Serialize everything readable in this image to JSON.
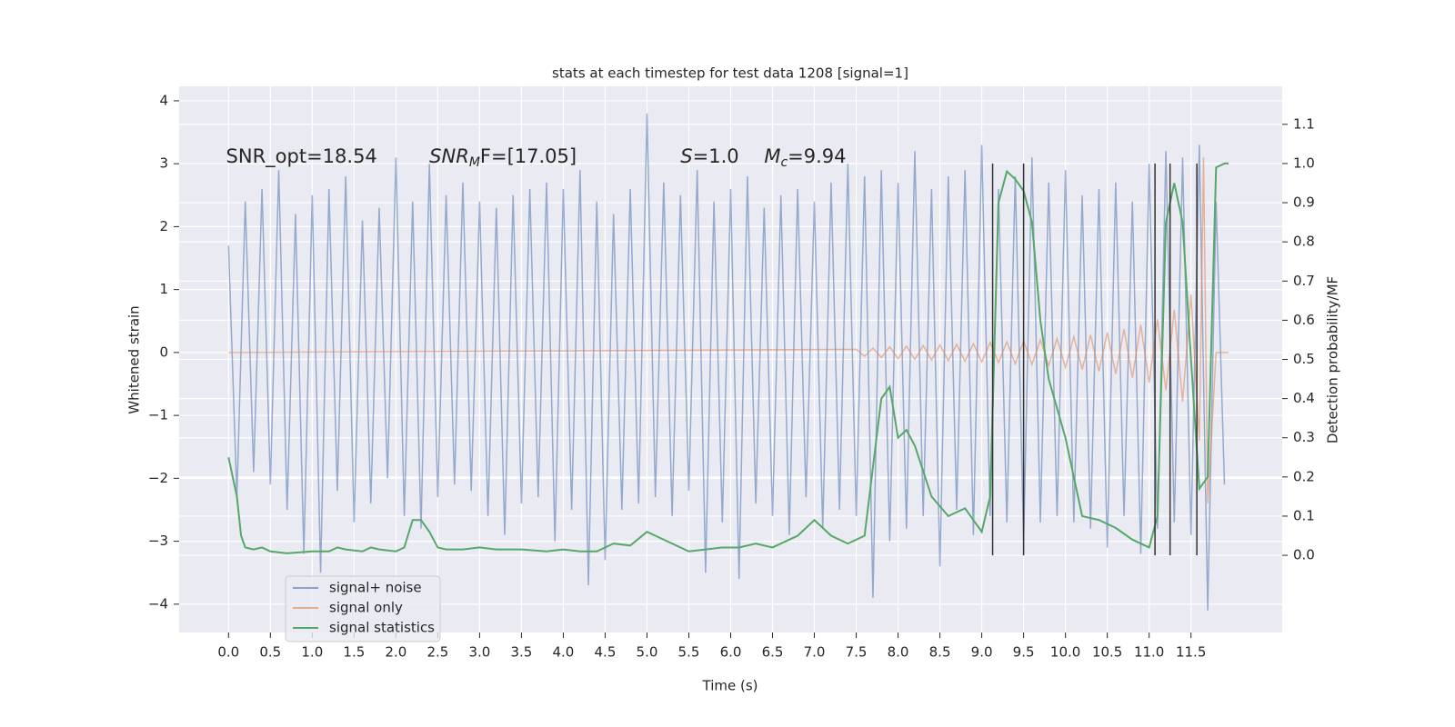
{
  "chart_data": {
    "type": "line",
    "title": "stats at each timestep for test data 1208 [signal=1]",
    "xlabel": "Time (s)",
    "ylabel": "Whitened strain",
    "y2label": "Detection probability/MF",
    "xlim": [
      -0.59,
      12.59
    ],
    "ylim": [
      -4.45,
      4.23
    ],
    "y2lim": [
      -0.197,
      1.197
    ],
    "xticks": [
      {
        "value": 0,
        "label": "0.0"
      },
      0.5,
      {
        "value": 1,
        "label": "1.0"
      },
      1.5,
      {
        "value": 2,
        "label": "2.0"
      },
      2.5,
      {
        "value": 3,
        "label": "3.0"
      },
      3.5,
      {
        "value": 4,
        "label": "4.0"
      },
      4.5,
      {
        "value": 5,
        "label": "5.0"
      },
      5.5,
      {
        "value": 6,
        "label": "6.0"
      },
      6.5,
      {
        "value": 7,
        "label": "7.0"
      },
      7.5,
      {
        "value": 8,
        "label": "8.0"
      },
      8.5,
      {
        "value": 9,
        "label": "9.0"
      },
      9.5,
      {
        "value": 10,
        "label": "10.0"
      },
      10.5,
      {
        "value": 11,
        "label": "11.0"
      },
      11.5
    ],
    "yticks": [
      {
        "value": -4,
        "label": "−4"
      },
      {
        "value": -3,
        "label": "−3"
      },
      {
        "value": -2,
        "label": "−2"
      },
      {
        "value": -1,
        "label": "−1"
      },
      0,
      1,
      2,
      3,
      4
    ],
    "y2ticks": [
      {
        "value": 0,
        "label": "0.0"
      },
      0.1,
      0.2,
      0.3,
      0.4,
      0.5,
      0.6,
      0.7,
      0.8,
      0.9,
      {
        "value": 1,
        "label": "1.0"
      },
      1.1
    ],
    "grid": true,
    "legend": "lower left",
    "annotations": [
      {
        "text": "SNR_opt=18.54",
        "x": -0.03,
        "y": 3.1
      },
      {
        "text": "SNR",
        "sub": "M",
        "rest": "F=[17.05]",
        "x": 2.4,
        "y": 3.1
      },
      {
        "text": "S",
        "rest": "=1.0",
        "x": 5.4,
        "y": 3.1
      },
      {
        "text": "M",
        "sub": "c",
        "rest": "=9.94",
        "x": 6.4,
        "y": 3.1
      }
    ],
    "vlines": {
      "x": [
        9.13,
        9.5,
        11.07,
        11.25,
        11.57
      ],
      "y2span": [
        0,
        1
      ],
      "color": "#333333"
    },
    "series": [
      {
        "name": "signal+ noise",
        "color": "#4c72b0",
        "x": [
          0,
          0.1,
          0.2,
          0.3,
          0.4,
          0.5,
          0.6,
          0.7,
          0.8,
          0.9,
          1,
          1.1,
          1.2,
          1.3,
          1.4,
          1.5,
          1.6,
          1.7,
          1.8,
          1.9,
          2,
          2.1,
          2.2,
          2.3,
          2.4,
          2.5,
          2.6,
          2.7,
          2.8,
          2.9,
          3,
          3.1,
          3.2,
          3.3,
          3.4,
          3.5,
          3.6,
          3.7,
          3.8,
          3.9,
          4,
          4.1,
          4.2,
          4.3,
          4.4,
          4.5,
          4.6,
          4.7,
          4.8,
          4.9,
          5,
          5.1,
          5.2,
          5.3,
          5.4,
          5.5,
          5.6,
          5.7,
          5.8,
          5.9,
          6,
          6.1,
          6.2,
          6.3,
          6.4,
          6.5,
          6.6,
          6.7,
          6.8,
          6.9,
          7,
          7.1,
          7.2,
          7.3,
          7.4,
          7.5,
          7.6,
          7.7,
          7.8,
          7.9,
          8,
          8.1,
          8.2,
          8.3,
          8.4,
          8.5,
          8.6,
          8.7,
          8.8,
          8.9,
          9,
          9.1,
          9.2,
          9.3,
          9.4,
          9.5,
          9.6,
          9.7,
          9.8,
          9.9,
          10,
          10.1,
          10.2,
          10.3,
          10.4,
          10.5,
          10.6,
          10.7,
          10.8,
          10.9,
          11,
          11.1,
          11.2,
          11.3,
          11.4,
          11.5,
          11.6,
          11.7,
          11.8,
          11.9
        ],
        "values": [
          1.7,
          -2.3,
          2.4,
          -1.9,
          2.6,
          -2.1,
          2.9,
          -2.5,
          2.2,
          -3.2,
          2.5,
          -3.5,
          2.6,
          -2.2,
          2.8,
          -2.7,
          2.1,
          -2.4,
          2.3,
          -2.0,
          3.1,
          -2.6,
          2.4,
          -2.8,
          3.0,
          -2.3,
          2.5,
          -2.1,
          2.7,
          -2.2,
          2.4,
          -2.6,
          2.3,
          -2.9,
          2.5,
          -2.4,
          2.6,
          -2.3,
          2.7,
          -3.0,
          2.6,
          -2.5,
          2.9,
          -3.7,
          2.4,
          -3.3,
          2.2,
          -2.5,
          2.6,
          -2.4,
          3.8,
          -2.3,
          2.7,
          -2.6,
          2.5,
          -2.2,
          2.9,
          -3.5,
          2.4,
          -2.7,
          2.6,
          -3.6,
          2.8,
          -2.4,
          2.3,
          -2.6,
          2.5,
          -2.9,
          2.6,
          -2.3,
          2.4,
          -2.8,
          2.7,
          -2.5,
          3.0,
          -2.6,
          2.8,
          -3.9,
          2.9,
          -3.0,
          2.7,
          -2.8,
          3.2,
          -2.6,
          2.6,
          -3.4,
          2.8,
          -2.5,
          2.9,
          -2.9,
          3.3,
          -2.6,
          2.6,
          -2.7,
          2.8,
          -3.0,
          3.1,
          -2.7,
          2.7,
          -2.6,
          2.9,
          -2.7,
          2.5,
          -2.8,
          2.6,
          -3.1,
          2.7,
          -2.6,
          2.4,
          -3.2,
          3.0,
          -2.8,
          3.2,
          -2.7,
          3.1,
          -2.9,
          3.3,
          -4.1,
          2.4,
          -2.1
        ]
      },
      {
        "name": "signal only",
        "color": "#dd8452",
        "x": [
          0,
          7.5,
          7.6,
          7.7,
          7.8,
          7.9,
          8,
          8.1,
          8.2,
          8.3,
          8.4,
          8.5,
          8.6,
          8.7,
          8.8,
          8.9,
          9,
          9.1,
          9.2,
          9.3,
          9.4,
          9.5,
          9.6,
          9.7,
          9.8,
          9.9,
          10,
          10.1,
          10.2,
          10.3,
          10.4,
          10.5,
          10.6,
          10.7,
          10.8,
          10.9,
          11,
          11.1,
          11.2,
          11.3,
          11.4,
          11.5,
          11.6,
          11.65,
          11.7,
          11.8,
          11.95
        ],
        "values": [
          0,
          0.05,
          -0.06,
          0.07,
          -0.08,
          0.09,
          -0.1,
          0.1,
          -0.11,
          0.11,
          -0.12,
          0.12,
          -0.13,
          0.13,
          -0.14,
          0.14,
          -0.15,
          0.16,
          -0.16,
          0.17,
          -0.18,
          0.18,
          -0.19,
          0.2,
          -0.21,
          0.22,
          -0.24,
          0.25,
          -0.27,
          0.28,
          -0.3,
          0.32,
          -0.34,
          0.37,
          -0.4,
          0.44,
          -0.48,
          0.53,
          -0.6,
          0.68,
          -0.78,
          0.92,
          -1.4,
          3.1,
          -2.4,
          0,
          0
        ]
      },
      {
        "name": "signal statistics",
        "color": "#55a868",
        "axis": "y2",
        "x": [
          0,
          0.1,
          0.15,
          0.2,
          0.3,
          0.4,
          0.5,
          0.7,
          1,
          1.2,
          1.3,
          1.4,
          1.6,
          1.7,
          1.8,
          2,
          2.1,
          2.2,
          2.3,
          2.4,
          2.5,
          2.6,
          2.8,
          3,
          3.2,
          3.5,
          3.8,
          4,
          4.2,
          4.4,
          4.6,
          4.8,
          5,
          5.1,
          5.3,
          5.5,
          5.7,
          5.9,
          6.1,
          6.3,
          6.5,
          6.8,
          7,
          7.2,
          7.4,
          7.6,
          7.8,
          7.9,
          8,
          8.1,
          8.2,
          8.4,
          8.6,
          8.8,
          9,
          9.1,
          9.2,
          9.3,
          9.4,
          9.5,
          9.6,
          9.7,
          9.8,
          10,
          10.2,
          10.4,
          10.6,
          10.8,
          11,
          11.1,
          11.2,
          11.3,
          11.4,
          11.5,
          11.6,
          11.7,
          11.8,
          11.9,
          11.95
        ],
        "values": [
          0.25,
          0.15,
          0.05,
          0.02,
          0.015,
          0.02,
          0.01,
          0.005,
          0.01,
          0.01,
          0.02,
          0.015,
          0.01,
          0.02,
          0.015,
          0.01,
          0.02,
          0.09,
          0.09,
          0.06,
          0.02,
          0.015,
          0.015,
          0.02,
          0.015,
          0.015,
          0.01,
          0.015,
          0.01,
          0.01,
          0.03,
          0.025,
          0.06,
          0.05,
          0.03,
          0.01,
          0.015,
          0.02,
          0.02,
          0.03,
          0.02,
          0.05,
          0.09,
          0.05,
          0.03,
          0.05,
          0.4,
          0.43,
          0.3,
          0.32,
          0.28,
          0.15,
          0.1,
          0.12,
          0.06,
          0.15,
          0.9,
          0.98,
          0.96,
          0.93,
          0.85,
          0.6,
          0.45,
          0.3,
          0.1,
          0.09,
          0.07,
          0.04,
          0.02,
          0.1,
          0.85,
          0.95,
          0.85,
          0.5,
          0.17,
          0.2,
          0.99,
          1.0,
          1.0
        ]
      }
    ]
  }
}
